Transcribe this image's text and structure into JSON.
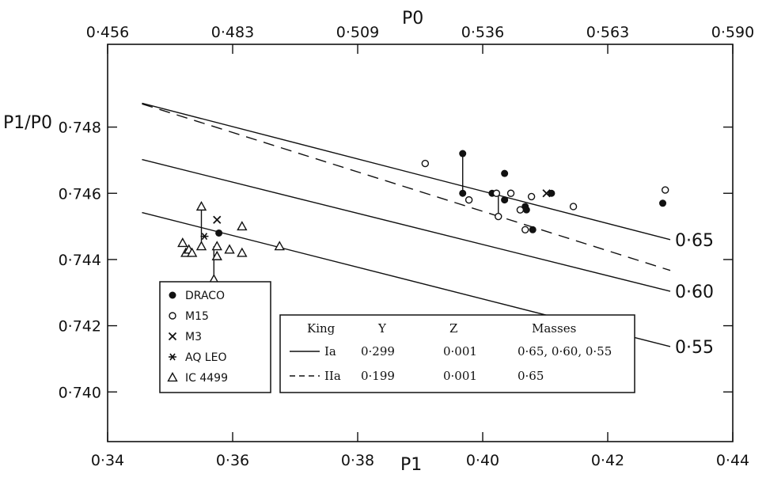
{
  "chart_data": {
    "type": "scatter",
    "title": "",
    "x_bottom": {
      "label": "P1",
      "ticks": [
        0.34,
        0.36,
        0.38,
        0.4,
        0.42,
        0.44
      ],
      "tick_labels": [
        "0·34",
        "0·36",
        "0·38",
        "0·40",
        "0·42",
        "0·44"
      ],
      "range": [
        0.34,
        0.44
      ]
    },
    "x_top": {
      "label": "P0",
      "ticks": [
        0.456,
        0.483,
        0.509,
        0.536,
        0.563,
        0.59
      ],
      "tick_labels": [
        "0·456",
        "0·483",
        "0·509",
        "0·536",
        "0·563",
        "0·590"
      ]
    },
    "y": {
      "label": "P1/P0",
      "ticks": [
        0.74,
        0.742,
        0.744,
        0.746,
        0.748
      ],
      "tick_labels": [
        "0·740",
        "0·742",
        "0·744",
        "0·746",
        "0·748"
      ],
      "range": [
        0.7385,
        0.7505
      ]
    },
    "grid": false,
    "series": [
      {
        "name": "DRACO",
        "marker": "filled-circle",
        "points": [
          [
            0.3968,
            0.7472
          ],
          [
            0.3968,
            0.746
          ],
          [
            0.4015,
            0.746
          ],
          [
            0.4035,
            0.7458
          ],
          [
            0.4035,
            0.7466
          ],
          [
            0.4068,
            0.7456
          ],
          [
            0.407,
            0.7455
          ],
          [
            0.408,
            0.7449
          ],
          [
            0.411,
            0.746
          ],
          [
            0.4288,
            0.7457
          ],
          [
            0.3578,
            0.7448
          ]
        ]
      },
      {
        "name": "M15",
        "marker": "open-circle",
        "points": [
          [
            0.3908,
            0.7469
          ],
          [
            0.3978,
            0.7458
          ],
          [
            0.4022,
            0.746
          ],
          [
            0.4025,
            0.7453
          ],
          [
            0.4045,
            0.746
          ],
          [
            0.406,
            0.7455
          ],
          [
            0.4068,
            0.7449
          ],
          [
            0.4078,
            0.7459
          ],
          [
            0.4145,
            0.7456
          ],
          [
            0.4292,
            0.7461
          ]
        ]
      },
      {
        "name": "M3",
        "marker": "x",
        "points": [
          [
            0.3575,
            0.7452
          ],
          [
            0.4102,
            0.746
          ]
        ]
      },
      {
        "name": "AQ LEO",
        "marker": "asterisk",
        "points": [
          [
            0.3555,
            0.7447
          ]
        ]
      },
      {
        "name": "IC 4499",
        "marker": "open-triangle",
        "points": [
          [
            0.355,
            0.7456
          ],
          [
            0.355,
            0.7444
          ],
          [
            0.352,
            0.7445
          ],
          [
            0.3525,
            0.7442
          ],
          [
            0.353,
            0.7443
          ],
          [
            0.3535,
            0.7442
          ],
          [
            0.3575,
            0.7444
          ],
          [
            0.3575,
            0.7441
          ],
          [
            0.357,
            0.7434
          ],
          [
            0.3595,
            0.7443
          ],
          [
            0.3615,
            0.745
          ],
          [
            0.3615,
            0.7442
          ],
          [
            0.3675,
            0.7444
          ]
        ]
      }
    ],
    "connectors": [
      [
        [
          0.3968,
          0.7472
        ],
        [
          0.3968,
          0.746
        ]
      ],
      [
        [
          0.4025,
          0.746
        ],
        [
          0.4025,
          0.7453
        ]
      ],
      [
        [
          0.355,
          0.7456
        ],
        [
          0.355,
          0.7444
        ]
      ],
      [
        [
          0.357,
          0.7444
        ],
        [
          0.357,
          0.7434
        ]
      ]
    ],
    "model_lines": [
      {
        "model": "Ia",
        "mass_label": "0·65",
        "style": "solid",
        "points": [
          [
            0.3455,
            0.74872
          ],
          [
            0.43,
            0.7446
          ]
        ]
      },
      {
        "model": "Ia",
        "mass_label": "0·60",
        "style": "solid",
        "points": [
          [
            0.3455,
            0.74702
          ],
          [
            0.43,
            0.74304
          ]
        ]
      },
      {
        "model": "Ia",
        "mass_label": "0·55",
        "style": "solid",
        "points": [
          [
            0.3455,
            0.74542
          ],
          [
            0.43,
            0.74137
          ]
        ]
      },
      {
        "model": "IIa",
        "mass_label": "",
        "style": "dashed",
        "points": [
          [
            0.3455,
            0.7487
          ],
          [
            0.43,
            0.74367
          ]
        ]
      }
    ],
    "legend": {
      "position": "bottom-left",
      "entries": [
        "DRACO",
        "M15",
        "M3",
        "AQ LEO",
        "IC 4499"
      ]
    },
    "model_table": {
      "headers": [
        "King",
        "Y",
        "Z",
        "Masses"
      ],
      "rows": [
        {
          "model": "Ia",
          "style": "solid",
          "Y": "0·299",
          "Z": "0·001",
          "masses": "0·65, 0·60, 0·55"
        },
        {
          "model": "IIa",
          "style": "dashed",
          "Y": "0·199",
          "Z": "0·001",
          "masses": "0·65"
        }
      ]
    }
  }
}
